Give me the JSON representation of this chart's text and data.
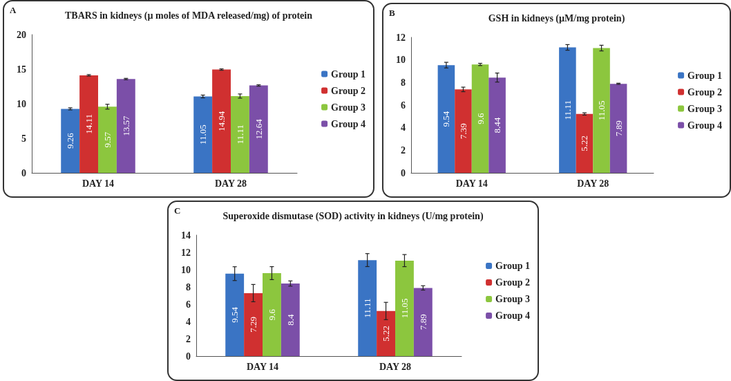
{
  "chart_data": [
    {
      "type": "bar",
      "title": "TBARS in kidneys (µ moles of MDA released/mg) of protein",
      "annotations": [
        "A"
      ],
      "categories": [
        "DAY 14",
        "DAY 28"
      ],
      "series": [
        {
          "name": "Group 1",
          "color": "#3a74c4",
          "values": [
            9.26,
            11.05
          ],
          "errors": [
            0.15,
            0.2
          ]
        },
        {
          "name": "Group 2",
          "color": "#d03030",
          "values": [
            14.11,
            14.94
          ],
          "errors": [
            0.1,
            0.1
          ]
        },
        {
          "name": "Group 3",
          "color": "#8cc63e",
          "values": [
            9.57,
            11.11
          ],
          "errors": [
            0.35,
            0.3
          ]
        },
        {
          "name": "Group 4",
          "color": "#7b4fa8",
          "values": [
            13.57,
            12.64
          ],
          "errors": [
            0.1,
            0.1
          ]
        }
      ],
      "ylim": [
        0,
        20
      ],
      "yticks": [
        0,
        5,
        10,
        15,
        20
      ],
      "grid": false,
      "legend": "right",
      "data_labels": true
    },
    {
      "type": "bar",
      "title": "GSH in kidneys (µM/mg protein)",
      "annotations": [
        "B"
      ],
      "categories": [
        "DAY 14",
        "DAY 28"
      ],
      "series": [
        {
          "name": "Group 1",
          "color": "#3a74c4",
          "values": [
            9.54,
            11.11
          ],
          "errors": [
            0.25,
            0.25
          ]
        },
        {
          "name": "Group 2",
          "color": "#d03030",
          "values": [
            7.39,
            5.22
          ],
          "errors": [
            0.2,
            0.1
          ]
        },
        {
          "name": "Group 3",
          "color": "#8cc63e",
          "values": [
            9.6,
            11.05
          ],
          "errors": [
            0.1,
            0.25
          ]
        },
        {
          "name": "Group 4",
          "color": "#7b4fa8",
          "values": [
            8.44,
            7.89
          ],
          "errors": [
            0.4,
            0.05
          ]
        }
      ],
      "ylim": [
        0,
        12
      ],
      "yticks": [
        0,
        2,
        4,
        6,
        8,
        10,
        12
      ],
      "grid": false,
      "legend": "right",
      "data_labels": true
    },
    {
      "type": "bar",
      "title": "Superoxide dismutase (SOD) activity in kidneys (U/mg protein)",
      "annotations": [
        "C"
      ],
      "categories": [
        "DAY 14",
        "DAY 28"
      ],
      "series": [
        {
          "name": "Group 1",
          "color": "#3a74c4",
          "values": [
            9.54,
            11.11
          ],
          "errors": [
            0.8,
            0.75
          ]
        },
        {
          "name": "Group 2",
          "color": "#d03030",
          "values": [
            7.29,
            5.22
          ],
          "errors": [
            1.0,
            1.0
          ]
        },
        {
          "name": "Group 3",
          "color": "#8cc63e",
          "values": [
            9.6,
            11.05
          ],
          "errors": [
            0.75,
            0.7
          ]
        },
        {
          "name": "Group 4",
          "color": "#7b4fa8",
          "values": [
            8.4,
            7.89
          ],
          "errors": [
            0.3,
            0.25
          ]
        }
      ],
      "ylim": [
        0,
        14
      ],
      "yticks": [
        0,
        2,
        4,
        6,
        8,
        10,
        12,
        14
      ],
      "grid": false,
      "legend": "right",
      "data_labels": true
    }
  ]
}
